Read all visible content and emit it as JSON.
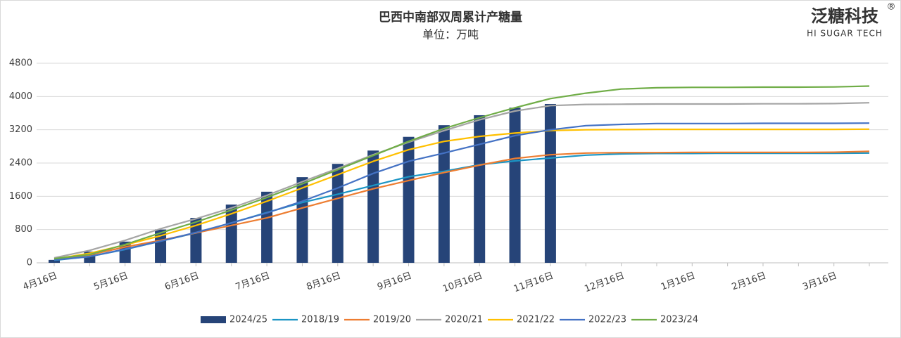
{
  "chart_data": {
    "type": "combo",
    "title": "巴西中南部双周累计产糖量",
    "subtitle": "单位：万吨",
    "logo": {
      "name": "泛糖科技",
      "mark": "®",
      "tagline": "HI SUGAR TECH"
    },
    "categories": [
      "4月16日",
      null,
      "5月16日",
      null,
      "6月16日",
      null,
      "7月16日",
      null,
      "8月16日",
      null,
      "9月16日",
      null,
      "10月16日",
      null,
      "11月16日",
      null,
      "12月16日",
      null,
      "1月16日",
      null,
      "2月16日",
      null,
      "3月16日",
      null
    ],
    "ylim": [
      0,
      4800
    ],
    "yticks": [
      0,
      800,
      1600,
      2400,
      3200,
      4000,
      4800
    ],
    "grid": true,
    "legend": "bottom",
    "series": [
      {
        "name": "2024/25",
        "type": "bar",
        "color": "#264478",
        "values": [
          70,
          270,
          510,
          800,
          1080,
          1400,
          1710,
          2060,
          2380,
          2700,
          3030,
          3310,
          3550,
          3730,
          3820,
          null,
          null,
          null,
          null,
          null,
          null,
          null,
          null,
          null
        ]
      },
      {
        "name": "2018/19",
        "type": "line",
        "color": "#1b95c4",
        "values": [
          60,
          150,
          320,
          520,
          720,
          960,
          1210,
          1450,
          1650,
          1860,
          2070,
          2200,
          2360,
          2450,
          2520,
          2590,
          2620,
          2630,
          2630,
          2635,
          2635,
          2635,
          2635,
          2640
        ]
      },
      {
        "name": "2019/20",
        "type": "line",
        "color": "#ed7d31",
        "values": [
          80,
          190,
          380,
          540,
          720,
          900,
          1080,
          1320,
          1550,
          1780,
          1980,
          2170,
          2350,
          2510,
          2600,
          2640,
          2650,
          2650,
          2655,
          2655,
          2655,
          2655,
          2660,
          2680
        ]
      },
      {
        "name": "2020/21",
        "type": "line",
        "color": "#a5a5a5",
        "values": [
          120,
          300,
          540,
          820,
          1060,
          1320,
          1620,
          1950,
          2270,
          2600,
          2900,
          3180,
          3440,
          3650,
          3780,
          3810,
          3815,
          3820,
          3820,
          3820,
          3825,
          3825,
          3830,
          3850
        ]
      },
      {
        "name": "2021/22",
        "type": "line",
        "color": "#ffc000",
        "values": [
          90,
          230,
          430,
          650,
          900,
          1180,
          1480,
          1800,
          2120,
          2440,
          2720,
          2920,
          3040,
          3120,
          3180,
          3200,
          3205,
          3210,
          3210,
          3210,
          3210,
          3210,
          3210,
          3215
        ]
      },
      {
        "name": "2022/23",
        "type": "line",
        "color": "#4472c4",
        "values": [
          70,
          150,
          330,
          520,
          730,
          960,
          1200,
          1480,
          1800,
          2150,
          2440,
          2640,
          2850,
          3060,
          3200,
          3300,
          3330,
          3350,
          3350,
          3350,
          3355,
          3355,
          3355,
          3360
        ]
      },
      {
        "name": "2023/24",
        "type": "line",
        "color": "#70ad47",
        "values": [
          100,
          200,
          440,
          720,
          980,
          1270,
          1570,
          1900,
          2240,
          2580,
          2920,
          3230,
          3490,
          3730,
          3950,
          4080,
          4180,
          4210,
          4220,
          4220,
          4225,
          4225,
          4230,
          4250
        ]
      }
    ]
  }
}
